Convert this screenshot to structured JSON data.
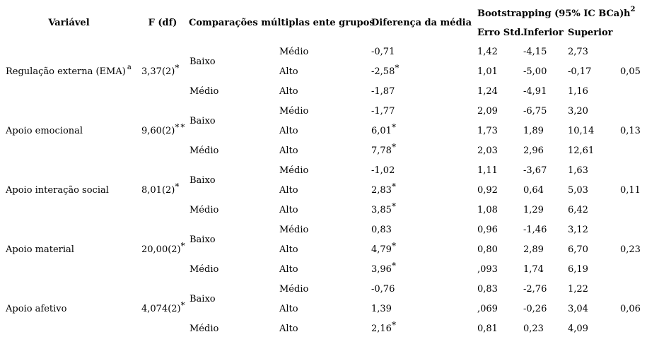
{
  "header": {
    "variable": "Variável",
    "f": "F (df)",
    "comparisons": "Comparações múltiplas ente grupos",
    "diff": "Diferença da média",
    "bootstrapping": "Bootstrapping (95% IC BCa)",
    "se": "Erro Std.",
    "lower": "Inferior",
    "upper": "Superior",
    "h2_base": "h",
    "h2_sup": "2"
  },
  "groups": [
    {
      "variable": "Regulação externa (EMA)",
      "variable_sup": "a",
      "f": "3,37(2)",
      "f_stars": "*",
      "g1_top": "Baixo",
      "g1_bottom": "Médio",
      "h2": "0,05",
      "rows": [
        {
          "g2": "Médio",
          "diff": "-0,71",
          "star": "",
          "se": "1,42",
          "lower": "-4,15",
          "upper": "2,73"
        },
        {
          "g2": "Alto",
          "diff": "-2,58",
          "star": "*",
          "se": "1,01",
          "lower": "-5,00",
          "upper": "-0,17"
        },
        {
          "g2": "Alto",
          "diff": "-1,87",
          "star": "",
          "se": "1,24",
          "lower": "-4,91",
          "upper": "1,16"
        }
      ]
    },
    {
      "variable": "Apoio emocional",
      "variable_sup": "",
      "f": "9,60(2)",
      "f_stars": "**",
      "g1_top": "Baixo",
      "g1_bottom": "Médio",
      "h2": "0,13",
      "rows": [
        {
          "g2": "Médio",
          "diff": "-1,77",
          "star": "",
          "se": "2,09",
          "lower": "-6,75",
          "upper": "3,20"
        },
        {
          "g2": "Alto",
          "diff": "6,01",
          "star": "*",
          "se": "1,73",
          "lower": "1,89",
          "upper": "10,14"
        },
        {
          "g2": "Alto",
          "diff": "7,78",
          "star": "*",
          "se": "2,03",
          "lower": "2,96",
          "upper": "12,61"
        }
      ]
    },
    {
      "variable": "Apoio interação social",
      "variable_sup": "",
      "f": "8,01(2)",
      "f_stars": "*",
      "g1_top": "Baixo",
      "g1_bottom": "Médio",
      "h2": "0,11",
      "rows": [
        {
          "g2": "Médio",
          "diff": "-1,02",
          "star": "",
          "se": "1,11",
          "lower": "-3,67",
          "upper": "1,63"
        },
        {
          "g2": "Alto",
          "diff": "2,83",
          "star": "*",
          "se": "0,92",
          "lower": "0,64",
          "upper": "5,03"
        },
        {
          "g2": "Alto",
          "diff": "3,85",
          "star": "*",
          "se": "1,08",
          "lower": "1,29",
          "upper": "6,42"
        }
      ]
    },
    {
      "variable": "Apoio material",
      "variable_sup": "",
      "f": "20,00(2)",
      "f_stars": "*",
      "g1_top": "Baixo",
      "g1_bottom": "Médio",
      "h2": "0,23",
      "rows": [
        {
          "g2": "Médio",
          "diff": "0,83",
          "star": "",
          "se": "0,96",
          "lower": "-1,46",
          "upper": "3,12"
        },
        {
          "g2": "Alto",
          "diff": "4,79",
          "star": "*",
          "se": "0,80",
          "lower": "2,89",
          "upper": "6,70"
        },
        {
          "g2": "Alto",
          "diff": "3,96",
          "star": "*",
          "se": ",093",
          "lower": "1,74",
          "upper": "6,19"
        }
      ]
    },
    {
      "variable": "Apoio afetivo",
      "variable_sup": "",
      "f": "4,074(2)",
      "f_stars": "*",
      "g1_top": "Baixo",
      "g1_bottom": "Médio",
      "h2": "0,06",
      "rows": [
        {
          "g2": "Médio",
          "diff": "-0,76",
          "star": "",
          "se": "0,83",
          "lower": "-2,76",
          "upper": "1,22"
        },
        {
          "g2": "Alto",
          "diff": "1,39",
          "star": "",
          "se": ",069",
          "lower": "-0,26",
          "upper": "3,04"
        },
        {
          "g2": "Alto",
          "diff": "2,16",
          "star": "*",
          "se": "0,81",
          "lower": "0,23",
          "upper": "4,09"
        }
      ]
    }
  ]
}
